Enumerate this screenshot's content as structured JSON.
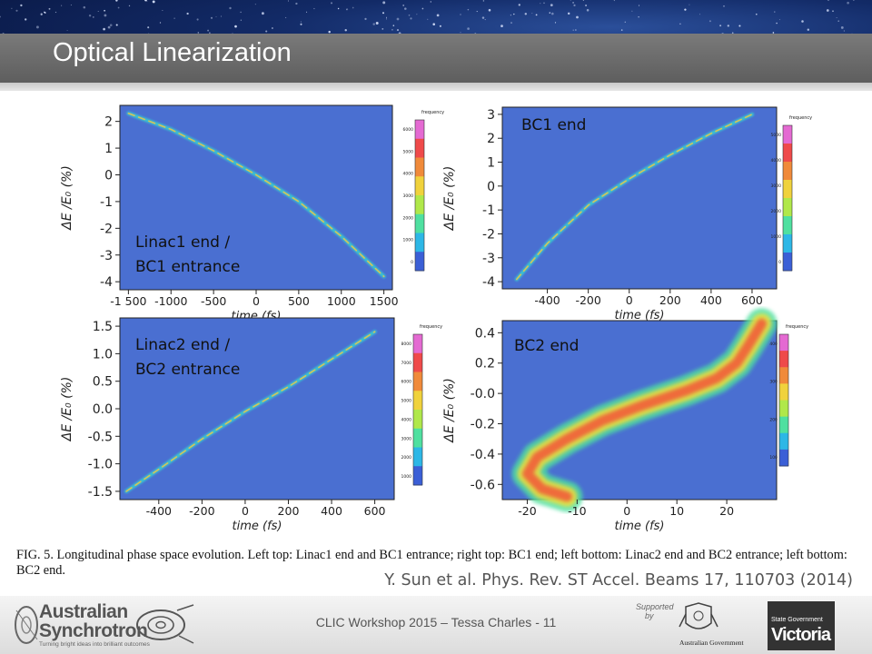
{
  "slide": {
    "title": "Optical Linearization",
    "caption": "FIG. 5.    Longitudinal phase space evolution. Left top: Linac1 end and BC1 entrance; right top: BC1 end; left bottom: Linac2 end and BC2 entrance; left bottom: BC2 end.",
    "citation": "Y. Sun et al. Phys. Rev. ST Accel. Beams 17, 110703 (2014)",
    "footer": "CLIC Workshop 2015 – Tessa Charles - 11"
  },
  "logos": {
    "as_line1": "Australian",
    "as_line2": "Synchrotron",
    "as_tagline": "Turning bright ideas into brilliant outcomes",
    "supported_by_1": "Supported",
    "supported_by_2": "by",
    "gov": "Australian Government",
    "vic_line1": "State Government",
    "vic_line2": "Victoria"
  },
  "colors": {
    "plot_background": "#4a6fd1",
    "title_bar": "#6b6b6b",
    "colorbar": [
      "#3b5fd6",
      "#2db7e6",
      "#4fe0a0",
      "#b0e84a",
      "#f0d23c",
      "#f08a3a",
      "#ef4a4a",
      "#e46ad2"
    ]
  },
  "chart_data": [
    {
      "type": "heatmap",
      "panel": "left-top",
      "annotation": [
        "Linac1 end /",
        "BC1 entrance"
      ],
      "xlabel": "time  (fs)",
      "ylabel": "ΔE /E₀  (%)",
      "xlim": [
        -1600,
        1600
      ],
      "ylim": [
        -4.3,
        2.6
      ],
      "xticks": [
        -1500,
        -1000,
        -500,
        0,
        500,
        1000,
        1500
      ],
      "xtick_labels": [
        "-1 500",
        "-1000",
        "-500",
        "0",
        "500",
        "1000",
        "1500"
      ],
      "yticks": [
        2,
        1,
        0,
        -1,
        -2,
        -3,
        -4
      ],
      "ytick_labels": [
        "2",
        "1",
        "0",
        "-1",
        "-2",
        "-3",
        "-4"
      ],
      "trace_x": [
        -1500,
        -1000,
        -500,
        0,
        500,
        1000,
        1500
      ],
      "trace_y": [
        2.3,
        1.7,
        0.9,
        0.0,
        -1.0,
        -2.3,
        -3.8
      ],
      "trace_width": 1.0,
      "colorbar": {
        "label": "frequency",
        "ticks": [
          "6000",
          "5000",
          "4000",
          "3000",
          "2000",
          "1000",
          "0"
        ]
      }
    },
    {
      "type": "heatmap",
      "panel": "right-top",
      "annotation": [
        "BC1 end"
      ],
      "xlabel": "time  (fs)",
      "ylabel": "ΔE /E₀  (%)",
      "xlim": [
        -620,
        720
      ],
      "ylim": [
        -4.3,
        3.3
      ],
      "xticks": [
        -400,
        -200,
        0,
        200,
        400,
        600
      ],
      "xtick_labels": [
        "-400",
        "-200",
        "0",
        "200",
        "400",
        "600"
      ],
      "yticks": [
        3,
        2,
        1,
        0,
        -1,
        -2,
        -3,
        -4
      ],
      "ytick_labels": [
        "3",
        "2",
        "1",
        "0",
        "-1",
        "-2",
        "-3",
        "-4"
      ],
      "trace_x": [
        -550,
        -400,
        -200,
        0,
        200,
        400,
        600
      ],
      "trace_y": [
        -3.9,
        -2.4,
        -0.8,
        0.3,
        1.3,
        2.2,
        3.0
      ],
      "trace_width": 1.0,
      "colorbar": {
        "label": "frequency",
        "ticks": [
          "5000",
          "4000",
          "3000",
          "2000",
          "1000",
          "0"
        ]
      }
    },
    {
      "type": "heatmap",
      "panel": "left-bottom",
      "annotation": [
        "Linac2 end /",
        "BC2 entrance"
      ],
      "xlabel": "time  (fs)",
      "ylabel": "ΔE /E₀  (%)",
      "xlim": [
        -580,
        690
      ],
      "ylim": [
        -1.65,
        1.65
      ],
      "xticks": [
        -400,
        -200,
        0,
        200,
        400,
        600
      ],
      "xtick_labels": [
        "-400",
        "-200",
        "0",
        "200",
        "400",
        "600"
      ],
      "yticks": [
        1.5,
        1.0,
        0.5,
        0.0,
        -0.5,
        -1.0,
        -1.5
      ],
      "ytick_labels": [
        "1.5",
        "1.0",
        "0.5",
        "0.0",
        "-0.5",
        "-1.0",
        "-1.5"
      ],
      "trace_x": [
        -550,
        -400,
        -200,
        0,
        200,
        400,
        600
      ],
      "trace_y": [
        -1.5,
        -1.1,
        -0.55,
        -0.05,
        0.4,
        0.9,
        1.4
      ],
      "trace_width": 1.0,
      "colorbar": {
        "label": "frequency",
        "ticks": [
          "8000",
          "7000",
          "6000",
          "5000",
          "4000",
          "3000",
          "2000",
          "1000"
        ]
      }
    },
    {
      "type": "heatmap",
      "panel": "right-bottom",
      "annotation": [
        "BC2 end"
      ],
      "xlabel": "time  (fs)",
      "ylabel": "ΔE /E₀  (%)",
      "xlim": [
        -25,
        30
      ],
      "ylim": [
        -0.7,
        0.48
      ],
      "xticks": [
        -20,
        -10,
        0,
        10,
        20
      ],
      "xtick_labels": [
        "-20",
        "-10",
        "0",
        "10",
        "20"
      ],
      "yticks": [
        0.4,
        0.2,
        0.0,
        -0.2,
        -0.4,
        -0.6
      ],
      "ytick_labels": [
        "0.4",
        "0.2",
        "-0.0",
        "-0.2",
        "-0.4",
        "-0.6"
      ],
      "trace_x": [
        -12,
        -17,
        -20,
        -18,
        -12,
        -5,
        3,
        12,
        18,
        22,
        24,
        25.5,
        27
      ],
      "trace_y": [
        -0.68,
        -0.63,
        -0.53,
        -0.42,
        -0.3,
        -0.18,
        -0.08,
        0.02,
        0.1,
        0.2,
        0.3,
        0.38,
        0.46
      ],
      "trace_width": 3.5,
      "colorbar": {
        "label": "frequency",
        "ticks": [
          "400",
          "300",
          "200",
          "100"
        ]
      }
    }
  ]
}
